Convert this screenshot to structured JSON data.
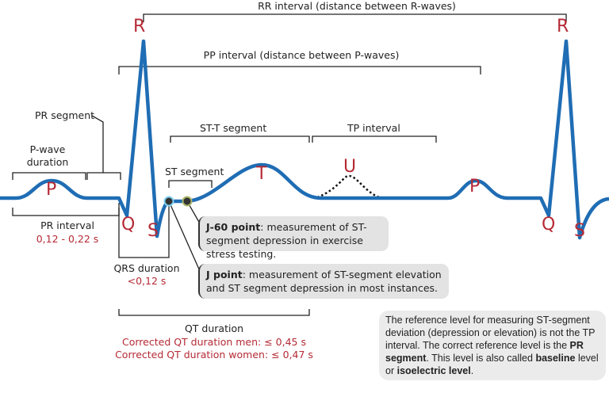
{
  "colors": {
    "wave": "#1f6db4",
    "label": "#b52a35",
    "bracket": "#222222",
    "box": "#e3e3e3"
  },
  "waves": {
    "R1": "R",
    "R2": "R",
    "P1": "P",
    "P2": "P",
    "Q1": "Q",
    "Q2": "Q",
    "S1": "S",
    "S2": "S",
    "T": "T",
    "U": "U"
  },
  "intervals": {
    "rr": "RR interval (distance between R-waves)",
    "pp": "PP interval (distance between P-waves)",
    "pr_segment": "PR segment",
    "p_wave_line1": "P-wave",
    "p_wave_line2": "duration",
    "st_t": "ST-T segment",
    "tp": "TP interval",
    "st_segment": "ST segment",
    "pr_interval": "PR interval",
    "pr_value": "0,12 - 0,22 s",
    "qrs": "QRS duration",
    "qrs_value": "<0,12 s",
    "qt": "QT duration",
    "qt_men": "Corrected QT duration men: ≤ 0,45 s",
    "qt_women": "Corrected QT duration women: ≤ 0,47 s"
  },
  "callouts": {
    "j60_bold": "J-60 point",
    "j60_text": ": measurement of ST-segment depression in exercise stress testing.",
    "j_bold": "J point",
    "j_text": ": measurement of ST-segment elevation and ST segment depression in most instances."
  },
  "info": {
    "t1": "The reference level for measuring ST-segment deviation (depression or elevation) is not the TP interval. The correct reference level is the ",
    "b1": "PR segment",
    "t2": ". This level is also called ",
    "b2": "baseline",
    "t3": " level or ",
    "b3": "isoelectric level",
    "t4": "."
  }
}
